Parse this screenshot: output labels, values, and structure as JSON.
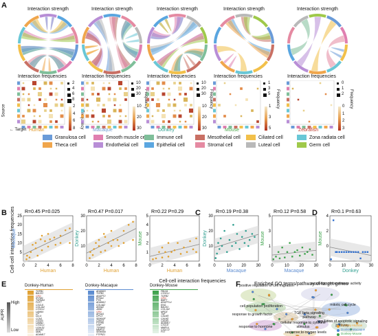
{
  "panels": {
    "a": "A",
    "b": "B",
    "c": "C",
    "d": "D",
    "e": "E",
    "f": "F"
  },
  "panel_a": {
    "chord_title": "Interaction strength",
    "freq_title": "Interaction frequencies",
    "species": [
      {
        "name": "Human",
        "color": "#e29a2b",
        "freq_legend": [
          "2",
          "4",
          "6",
          "8"
        ],
        "size_legend": [
          "2",
          "4",
          "6",
          "8"
        ]
      },
      {
        "name": "Macaque",
        "color": "#6f9bd1",
        "freq_legend": [
          "10",
          "20",
          "30"
        ],
        "size_legend": [
          "10",
          "20",
          "30"
        ]
      },
      {
        "name": "Donkey",
        "color": "#2f9e8f",
        "freq_legend": [
          "10",
          "20",
          "30"
        ],
        "size_legend": [
          "10",
          "20",
          "30"
        ]
      },
      {
        "name": "Mouse",
        "color": "#4aa94a",
        "freq_legend": [
          "1",
          "3",
          "5"
        ],
        "size_legend": [
          "1",
          "3",
          "5"
        ]
      },
      {
        "name": "Zebrafish",
        "color": "#c0392b",
        "freq_legend": [
          "0",
          "1",
          "2",
          "3"
        ],
        "size_legend": [
          "0",
          "1",
          "2"
        ]
      }
    ],
    "axis_source": "Source",
    "axis_target": "Target",
    "frequency_label": "Frequency",
    "cell_types": [
      {
        "name": "Granulosa cell",
        "color": "#6a9bd8"
      },
      {
        "name": "Smooth muscle cell",
        "color": "#e07fb0"
      },
      {
        "name": "Immune cell",
        "color": "#7fbf9a"
      },
      {
        "name": "Mesothelial cell",
        "color": "#c97064"
      },
      {
        "name": "Ciliated cell",
        "color": "#f2c04a"
      },
      {
        "name": "Zona radiata cell",
        "color": "#69c7d6"
      },
      {
        "name": "Theca cell",
        "color": "#f0a64c"
      },
      {
        "name": "Endothelial cell",
        "color": "#b88ed6"
      },
      {
        "name": "Epithelial cell",
        "color": "#5aa6e0"
      },
      {
        "name": "Stromal cell",
        "color": "#e58aa2"
      },
      {
        "name": "Luteal cell",
        "color": "#b9b9b9"
      },
      {
        "name": "Germ cell",
        "color": "#9fc94a"
      }
    ]
  },
  "panel_b": {
    "ylabel": "Cell-cell interaction frequencies",
    "xlabel": "Cell-cell interaction frequencies",
    "icon_note": "scatter-with-regression"
  },
  "chart_data": [
    {
      "type": "scatter",
      "panel": "B1",
      "annotation": "R=0.45  P=0.025",
      "xlabel": "Human",
      "ylabel": "Macaque",
      "xlim": [
        0,
        8
      ],
      "ylim": [
        0,
        25
      ],
      "xticks": [
        "0",
        "2",
        "4",
        "6",
        "8"
      ],
      "yticks": [
        "5",
        "10",
        "15",
        "20",
        "25"
      ],
      "points": [
        [
          0.5,
          1
        ],
        [
          0.6,
          3
        ],
        [
          1,
          2
        ],
        [
          1.2,
          5
        ],
        [
          1.5,
          9
        ],
        [
          2,
          7
        ],
        [
          2,
          10
        ],
        [
          2.3,
          3
        ],
        [
          2.8,
          12
        ],
        [
          3,
          14
        ],
        [
          3,
          6
        ],
        [
          3.5,
          11
        ],
        [
          4,
          8
        ],
        [
          4,
          15
        ],
        [
          4.3,
          12
        ],
        [
          5,
          13
        ],
        [
          5.2,
          9
        ],
        [
          6,
          10
        ],
        [
          6,
          14
        ],
        [
          6.8,
          17
        ],
        [
          7.5,
          18
        ],
        [
          7.5,
          10
        ]
      ]
    },
    {
      "type": "scatter",
      "panel": "B2",
      "annotation": "R=0.47  P=0.017",
      "xlabel": "Human",
      "ylabel": "Donkey",
      "xlim": [
        0,
        8
      ],
      "ylim": [
        0,
        30
      ],
      "xticks": [
        "0",
        "2",
        "4",
        "6",
        "8"
      ],
      "yticks": [
        "10",
        "20",
        "30"
      ],
      "points": [
        [
          0.5,
          2
        ],
        [
          0.6,
          6
        ],
        [
          1,
          4
        ],
        [
          1.2,
          8
        ],
        [
          1.5,
          12
        ],
        [
          2,
          10
        ],
        [
          2,
          14
        ],
        [
          2.3,
          6
        ],
        [
          2.8,
          18
        ],
        [
          3,
          16
        ],
        [
          3,
          7
        ],
        [
          3.5,
          12
        ],
        [
          4,
          10
        ],
        [
          4,
          20
        ],
        [
          4.3,
          14
        ],
        [
          5,
          14
        ],
        [
          5.2,
          10
        ],
        [
          6,
          12
        ],
        [
          6,
          20
        ],
        [
          6.8,
          24
        ],
        [
          7.5,
          26
        ],
        [
          7.5,
          14
        ]
      ]
    },
    {
      "type": "scatter",
      "panel": "B3",
      "annotation": "R=0.22  P=0.29",
      "xlabel": "Human",
      "ylabel": "Mouse",
      "xlim": [
        0,
        8
      ],
      "ylim": [
        0,
        5
      ],
      "xticks": [
        "0",
        "2",
        "4",
        "6",
        "8"
      ],
      "yticks": [
        "1",
        "2",
        "3",
        "4",
        "5"
      ],
      "points": [
        [
          0.5,
          0.2
        ],
        [
          1,
          0.3
        ],
        [
          1.5,
          1
        ],
        [
          2,
          1.5
        ],
        [
          2,
          0.4
        ],
        [
          2.5,
          1
        ],
        [
          3,
          2
        ],
        [
          3,
          0.5
        ],
        [
          3.5,
          1
        ],
        [
          4,
          1.2
        ],
        [
          4.5,
          2
        ],
        [
          5,
          0.8
        ],
        [
          5.5,
          1.5
        ],
        [
          6,
          1
        ],
        [
          6.5,
          2.2
        ],
        [
          7,
          1.3
        ],
        [
          7.5,
          2.5
        ],
        [
          7.5,
          1
        ]
      ]
    },
    {
      "type": "scatter",
      "panel": "C1",
      "annotation": "R=0.19  P=0.38",
      "xlabel": "Macaque",
      "ylabel": "Donkey",
      "xlim": [
        0,
        35
      ],
      "ylim": [
        0,
        30
      ],
      "xticks": [
        "0",
        "10",
        "20",
        "30"
      ],
      "yticks": [
        "10",
        "20",
        "30"
      ],
      "points": [
        [
          1,
          2
        ],
        [
          2,
          5
        ],
        [
          3,
          12
        ],
        [
          4,
          8
        ],
        [
          5,
          15
        ],
        [
          6,
          10
        ],
        [
          8,
          20
        ],
        [
          10,
          6
        ],
        [
          12,
          14
        ],
        [
          14,
          10
        ],
        [
          15,
          24
        ],
        [
          17,
          12
        ],
        [
          18,
          18
        ],
        [
          20,
          8
        ],
        [
          22,
          16
        ],
        [
          24,
          12
        ],
        [
          25,
          20
        ],
        [
          27,
          10
        ],
        [
          28,
          14
        ],
        [
          30,
          18
        ],
        [
          32,
          16
        ]
      ]
    },
    {
      "type": "scatter",
      "panel": "C2",
      "annotation": "R=0.12  P=0.58",
      "xlabel": "Macaque",
      "ylabel": "Mouse",
      "xlim": [
        0,
        35
      ],
      "ylim": [
        0,
        5
      ],
      "xticks": [
        "0",
        "10",
        "20",
        "30"
      ],
      "yticks": [
        "1",
        "3",
        "5"
      ],
      "points": [
        [
          1,
          0.2
        ],
        [
          3,
          0.5
        ],
        [
          5,
          1
        ],
        [
          6,
          0.3
        ],
        [
          8,
          1.5
        ],
        [
          10,
          0.4
        ],
        [
          12,
          1
        ],
        [
          14,
          2
        ],
        [
          16,
          0.5
        ],
        [
          18,
          1
        ],
        [
          20,
          1.2
        ],
        [
          22,
          0.6
        ],
        [
          24,
          1.5
        ],
        [
          26,
          0.8
        ],
        [
          28,
          1
        ],
        [
          30,
          1.3
        ],
        [
          32,
          0.7
        ]
      ]
    },
    {
      "type": "scatter",
      "panel": "D",
      "annotation": "R=0.1  P=0.63",
      "xlabel": "Donkey",
      "ylabel": "Mouse",
      "xlim": [
        0,
        35
      ],
      "ylim": [
        0,
        5
      ],
      "xticks": [
        "0",
        "10",
        "20",
        "30"
      ],
      "yticks": [
        "0",
        "2",
        "4"
      ],
      "points": [
        [
          1,
          0.2
        ],
        [
          3,
          4.5
        ],
        [
          5,
          1
        ],
        [
          6,
          1
        ],
        [
          8,
          1
        ],
        [
          10,
          1
        ],
        [
          12,
          1
        ],
        [
          14,
          1
        ],
        [
          16,
          1
        ],
        [
          18,
          1
        ],
        [
          20,
          1
        ],
        [
          22,
          1
        ],
        [
          24,
          1
        ],
        [
          26,
          0.3
        ],
        [
          28,
          1
        ],
        [
          30,
          1
        ],
        [
          32,
          1
        ]
      ]
    }
  ],
  "panel_e": {
    "auprc_label": "AUPR",
    "high": "High",
    "low": "Low",
    "columns": [
      {
        "title": "Donkey-Human",
        "color": "#e0a030",
        "genes": [
          "TGFB1",
          "BACE2",
          "GRN",
          "IFITM1",
          "TSPAN3",
          "FGF7",
          "CXCL8",
          "COL1A2",
          "CX3CL1",
          "LAMA4",
          "CP",
          "DLL4",
          "CCN1",
          "CD320",
          "LAMA2",
          "CX3CL1",
          "LGALS1",
          "ANXA2",
          "IAML",
          "ADAM17"
        ],
        "red_index": 2
      },
      {
        "title": "Donkey-Macaque",
        "color": "#5b8bd0",
        "genes": [
          "ADAM15",
          "TGFB1",
          "ANGPT2",
          "EFNA1",
          "PTN",
          "ADAM12",
          "COL4A2",
          "ANXA2",
          "JAM2",
          "GRN",
          "APOA1",
          "GPC3",
          "SEMA3F",
          "CDH13",
          "PTPRK",
          "VWF",
          "TSPAN3",
          "MMP14",
          "SEMA5A",
          "PTPRZ1"
        ],
        "red_index": 9
      },
      {
        "title": "Donkey-Mouse",
        "color": "#3fa34d",
        "genes": [
          "FBLN1",
          "CX3CL1",
          "TGFB2",
          "GRN",
          "BMP7",
          "ANGPTL4",
          "ENG",
          "BACE2",
          "COL1A2",
          "MPDZ",
          "TNF",
          "CALM3",
          "CALM2",
          "CALM1",
          "ADAM17",
          "CXCL8",
          "MMP14",
          "CXCL12",
          "FST"
        ],
        "red_index": 3
      }
    ]
  },
  "panel_f": {
    "title": "Enriched GO terms/pathway of  target genes",
    "terms": [
      "positive regulation of cell migration",
      "regulation of transferase activity",
      "cell population proliferation",
      "response to growth factor",
      "TGF beta signaling pathway",
      "mitotic cell cycle",
      "cellular response to cytokine stimulus",
      "regulation of apoptotic signaling pathway",
      "response to hormone",
      "response to oxygen levels"
    ],
    "legend": [
      {
        "name": "Donkey-Human",
        "color": "#f0a030"
      },
      {
        "name": "Donkey-Macaque",
        "color": "#4f86d6"
      },
      {
        "name": "Donkey-Mouse",
        "color": "#3fa34d"
      }
    ]
  }
}
